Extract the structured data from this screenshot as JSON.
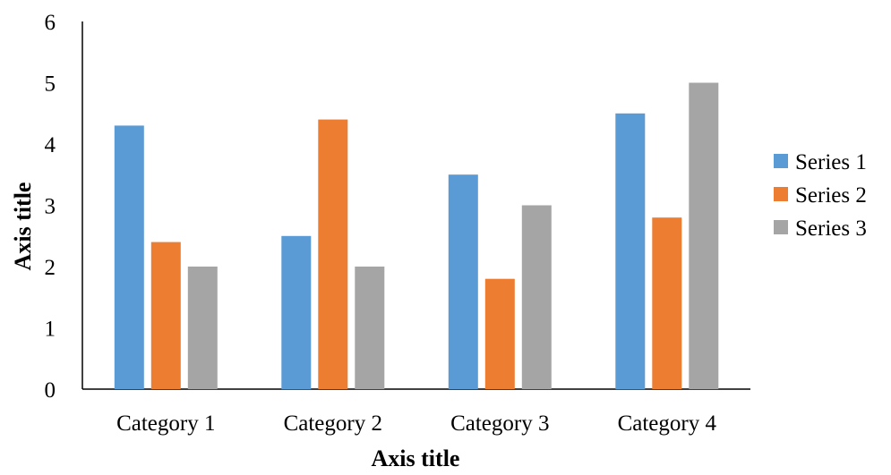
{
  "chart_data": {
    "type": "bar",
    "categories": [
      "Category 1",
      "Category 2",
      "Category 3",
      "Category 4"
    ],
    "series": [
      {
        "name": "Series 1",
        "color": "#5B9BD5",
        "values": [
          4.3,
          2.5,
          3.5,
          4.5
        ]
      },
      {
        "name": "Series 2",
        "color": "#ED7D31",
        "values": [
          2.4,
          4.4,
          1.8,
          2.8
        ]
      },
      {
        "name": "Series 3",
        "color": "#A5A5A5",
        "values": [
          2.0,
          2.0,
          3.0,
          5.0
        ]
      }
    ],
    "title": "",
    "xlabel": "Axis title",
    "ylabel": "Axis title",
    "ylim": [
      0,
      6
    ],
    "yticks": [
      0,
      1,
      2,
      3,
      4,
      5,
      6
    ],
    "grid": false,
    "legend_position": "right"
  }
}
